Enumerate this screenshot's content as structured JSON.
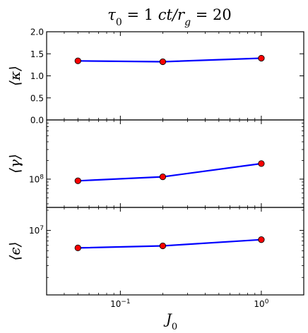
{
  "chart_data": {
    "type": "line",
    "title": "τ₀ = 1  ct/r_g = 20",
    "title_parts": [
      "τ",
      "0",
      " = 1  ",
      "ct/r",
      "g",
      " = 20"
    ],
    "x": [
      0.05,
      0.2,
      1.0
    ],
    "xscale": "log",
    "xlim": [
      0.03,
      2.0
    ],
    "xlabel_parts": [
      "J",
      "0"
    ],
    "xticks": [
      {
        "value": 0.1,
        "base": "10",
        "exp": "−1"
      },
      {
        "value": 1.0,
        "base": "10",
        "exp": "0"
      }
    ],
    "line_color": "#0000ff",
    "marker_color": "#ff0000",
    "panels": [
      {
        "id": "kappa",
        "ylabel": "⟨κ⟩",
        "yscale": "linear",
        "ylim": [
          0.0,
          2.0
        ],
        "yticks": [
          {
            "value": 2.0,
            "label": "2.0"
          },
          {
            "value": 1.5,
            "label": "1.5"
          },
          {
            "value": 1.0,
            "label": "1.0"
          },
          {
            "value": 0.5,
            "label": "0.5"
          },
          {
            "value": 0.0,
            "label": "0.0"
          }
        ],
        "values": [
          1.34,
          1.32,
          1.4
        ]
      },
      {
        "id": "gamma",
        "ylabel": "⟨γ⟩",
        "yscale": "log",
        "ylim": [
          35000000,
          900000000
        ],
        "yticks": [
          {
            "value": 100000000,
            "base": "10",
            "exp": "8"
          }
        ],
        "values": [
          94000000,
          109000000,
          178000000
        ]
      },
      {
        "id": "epsilon",
        "ylabel": "⟨ϵ⟩",
        "yscale": "log",
        "ylim": [
          1100000,
          22000000
        ],
        "yticks": [
          {
            "value": 10000000,
            "base": "10",
            "exp": "7"
          }
        ],
        "values": [
          5500000,
          5900000,
          7300000
        ]
      }
    ]
  }
}
